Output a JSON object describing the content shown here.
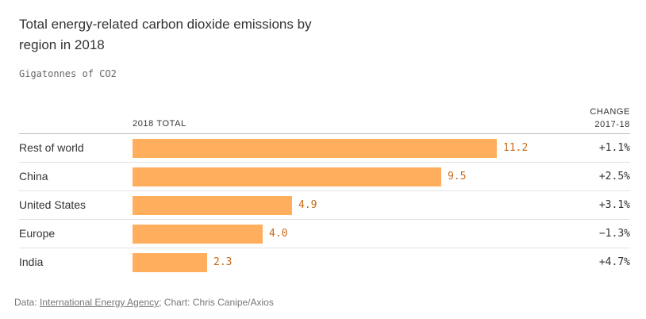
{
  "chart_data": {
    "type": "bar",
    "title": "Total energy-related carbon dioxide emissions by region in 2018",
    "subtitle": "Gigatonnes of CO2",
    "value_column_label": "2018 TOTAL",
    "change_column_label_line1": "CHANGE",
    "change_column_label_line2": "2017-18",
    "categories": [
      "Rest of world",
      "China",
      "United States",
      "Europe",
      "India"
    ],
    "values": [
      11.2,
      9.5,
      4.9,
      4.0,
      2.3
    ],
    "value_labels": [
      "11.2",
      "9.5",
      "4.9",
      "4.0",
      "2.3"
    ],
    "changes": [
      "+1.1%",
      "+2.5%",
      "+3.1%",
      "−1.3%",
      "+4.7%"
    ],
    "xlim": [
      0,
      11.2
    ],
    "bar_color": "#ffae5e",
    "value_label_color": "#c86a18"
  },
  "footer": {
    "prefix": "Data: ",
    "source_link": "International Energy Agency",
    "suffix": "; Chart: Chris Canipe/Axios"
  }
}
